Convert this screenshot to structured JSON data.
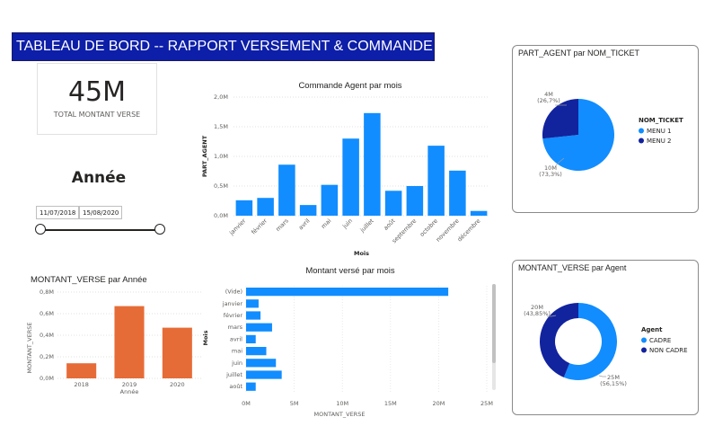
{
  "header": {
    "title": "TABLEAU DE BORD -- RAPPORT VERSEMENT & COMMANDE"
  },
  "kpi": {
    "value": "45M",
    "label": "TOTAL MONTANT VERSE"
  },
  "slicer": {
    "title": "Année",
    "start_date": "11/07/2018",
    "end_date": "15/08/2020"
  },
  "colors": {
    "blue": "#118dff",
    "navy": "#12239e",
    "orange": "#e66c37",
    "title_bg": "#0d1ea8"
  },
  "charts": {
    "commande": {
      "title": "Commande Agent par mois"
    },
    "pie": {
      "title": "PART_AGENT par NOM_TICKET"
    },
    "annee": {
      "title": "MONTANT_VERSE par Année"
    },
    "verse": {
      "title": "Montant versé par mois"
    },
    "donut": {
      "title": "MONTANT_VERSE par Agent"
    }
  },
  "chart_data": [
    {
      "id": "commande",
      "type": "bar",
      "title": "Commande Agent par mois",
      "xlabel": "Mois",
      "ylabel": "PART_AGENT",
      "categories": [
        "janvier",
        "février",
        "mars",
        "avril",
        "mai",
        "juin",
        "juillet",
        "août",
        "septembre",
        "octobre",
        "novembre",
        "décembre"
      ],
      "values": [
        0.26,
        0.3,
        0.86,
        0.18,
        0.52,
        1.3,
        1.73,
        0.42,
        0.5,
        1.18,
        0.76,
        0.08
      ],
      "yticks": [
        "0,0M",
        "0,5M",
        "1,0M",
        "1,5M",
        "2,0M"
      ],
      "ylim": [
        0,
        2.0
      ],
      "grid": true
    },
    {
      "id": "pie",
      "type": "pie",
      "title": "PART_AGENT par NOM_TICKET",
      "legend_title": "NOM_TICKET",
      "slices": [
        {
          "name": "MENU 1",
          "value": 10,
          "label": "10M",
          "pct": "(73,3%)",
          "color": "#118dff"
        },
        {
          "name": "MENU 2",
          "value": 4,
          "label": "4M",
          "pct": "(26,7%)",
          "color": "#12239e"
        }
      ],
      "fractions": [
        0.733,
        0.267
      ]
    },
    {
      "id": "annee",
      "type": "bar",
      "title": "MONTANT_VERSE par Année",
      "xlabel": "Année",
      "ylabel": "MONTANT_VERSE",
      "categories": [
        "2018",
        "2019",
        "2020"
      ],
      "values": [
        0.14,
        0.67,
        0.47
      ],
      "yticks": [
        "0,0M",
        "0,2M",
        "0,4M",
        "0,6M",
        "0,8M"
      ],
      "ylim": [
        0,
        0.8
      ],
      "color": "#e66c37"
    },
    {
      "id": "verse",
      "type": "bar",
      "orientation": "horizontal",
      "title": "Montant versé par mois",
      "xlabel": "MONTANT_VERSE",
      "ylabel": "Mois",
      "categories": [
        "(Vide)",
        "janvier",
        "février",
        "mars",
        "avril",
        "mai",
        "juin",
        "juillet",
        "août"
      ],
      "values": [
        21,
        1.3,
        1.5,
        2.7,
        1.0,
        2.1,
        3.1,
        3.7,
        1.0
      ],
      "xticks": [
        "0M",
        "5M",
        "10M",
        "15M",
        "20M",
        "25M"
      ],
      "xlim": [
        0,
        25
      ]
    },
    {
      "id": "donut",
      "type": "pie",
      "title": "MONTANT_VERSE par Agent",
      "legend_title": "Agent",
      "slices": [
        {
          "name": "CADRE",
          "value": 25,
          "label": "25M",
          "pct": "(56,15%)",
          "color": "#118dff"
        },
        {
          "name": "NON CADRE",
          "value": 20,
          "label": "20M",
          "pct": "(43,85%)",
          "color": "#12239e"
        }
      ],
      "fractions": [
        0.5615,
        0.4385
      ]
    }
  ]
}
